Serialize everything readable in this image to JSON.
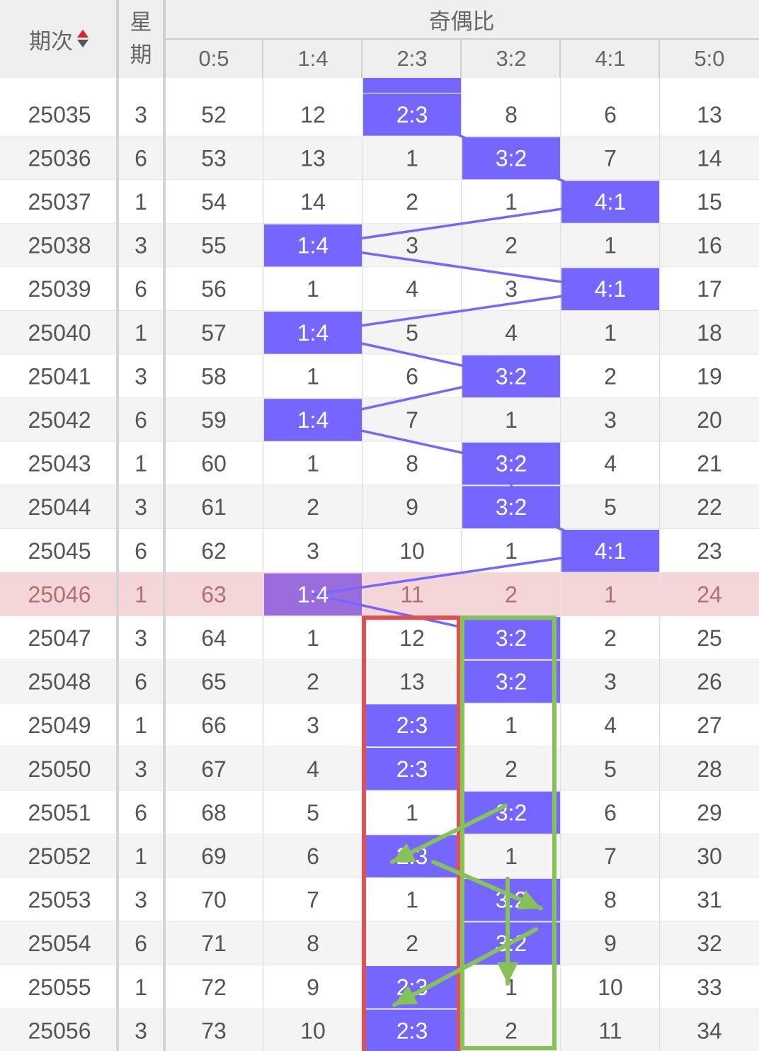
{
  "header": {
    "period_label": "期次",
    "weekday_label_line1": "星",
    "weekday_label_line2": "期",
    "group_label": "奇偶比",
    "columns": [
      "0:5",
      "1:4",
      "2:3",
      "3:2",
      "4:1",
      "5:0"
    ]
  },
  "colors": {
    "hit_cell": "#7466ff",
    "highlight_row": "#f5d6d8",
    "highlight_hit_cell": "#9b6cdb",
    "connector_line": "#7466ff",
    "red_box": "#e05050",
    "green_box": "#86c257"
  },
  "highlight_row_period": "25046",
  "rows": [
    {
      "period": "25035",
      "weekday": "3",
      "cells": [
        "52",
        "12",
        "2:3",
        "8",
        "6",
        "13"
      ],
      "hit": 2
    },
    {
      "period": "25036",
      "weekday": "6",
      "cells": [
        "53",
        "13",
        "1",
        "3:2",
        "7",
        "14"
      ],
      "hit": 3
    },
    {
      "period": "25037",
      "weekday": "1",
      "cells": [
        "54",
        "14",
        "2",
        "1",
        "4:1",
        "15"
      ],
      "hit": 4
    },
    {
      "period": "25038",
      "weekday": "3",
      "cells": [
        "55",
        "1:4",
        "3",
        "2",
        "1",
        "16"
      ],
      "hit": 1
    },
    {
      "period": "25039",
      "weekday": "6",
      "cells": [
        "56",
        "1",
        "4",
        "3",
        "4:1",
        "17"
      ],
      "hit": 4
    },
    {
      "period": "25040",
      "weekday": "1",
      "cells": [
        "57",
        "1:4",
        "5",
        "4",
        "1",
        "18"
      ],
      "hit": 1
    },
    {
      "period": "25041",
      "weekday": "3",
      "cells": [
        "58",
        "1",
        "6",
        "3:2",
        "2",
        "19"
      ],
      "hit": 3
    },
    {
      "period": "25042",
      "weekday": "6",
      "cells": [
        "59",
        "1:4",
        "7",
        "1",
        "3",
        "20"
      ],
      "hit": 1
    },
    {
      "period": "25043",
      "weekday": "1",
      "cells": [
        "60",
        "1",
        "8",
        "3:2",
        "4",
        "21"
      ],
      "hit": 3
    },
    {
      "period": "25044",
      "weekday": "3",
      "cells": [
        "61",
        "2",
        "9",
        "3:2",
        "5",
        "22"
      ],
      "hit": 3
    },
    {
      "period": "25045",
      "weekday": "6",
      "cells": [
        "62",
        "3",
        "10",
        "1",
        "4:1",
        "23"
      ],
      "hit": 4
    },
    {
      "period": "25046",
      "weekday": "1",
      "cells": [
        "63",
        "1:4",
        "11",
        "2",
        "1",
        "24"
      ],
      "hit": 1
    },
    {
      "period": "25047",
      "weekday": "3",
      "cells": [
        "64",
        "1",
        "12",
        "3:2",
        "2",
        "25"
      ],
      "hit": 3
    },
    {
      "period": "25048",
      "weekday": "6",
      "cells": [
        "65",
        "2",
        "13",
        "3:2",
        "3",
        "26"
      ],
      "hit": 3
    },
    {
      "period": "25049",
      "weekday": "1",
      "cells": [
        "66",
        "3",
        "2:3",
        "1",
        "4",
        "27"
      ],
      "hit": 2
    },
    {
      "period": "25050",
      "weekday": "3",
      "cells": [
        "67",
        "4",
        "2:3",
        "2",
        "5",
        "28"
      ],
      "hit": 2
    },
    {
      "period": "25051",
      "weekday": "6",
      "cells": [
        "68",
        "5",
        "1",
        "3:2",
        "6",
        "29"
      ],
      "hit": 3
    },
    {
      "period": "25052",
      "weekday": "1",
      "cells": [
        "69",
        "6",
        "2:3",
        "1",
        "7",
        "30"
      ],
      "hit": 2
    },
    {
      "period": "25053",
      "weekday": "3",
      "cells": [
        "70",
        "7",
        "1",
        "3:2",
        "8",
        "31"
      ],
      "hit": 3
    },
    {
      "period": "25054",
      "weekday": "6",
      "cells": [
        "71",
        "8",
        "2",
        "3:2",
        "9",
        "32"
      ],
      "hit": 3
    },
    {
      "period": "25055",
      "weekday": "1",
      "cells": [
        "72",
        "9",
        "2:3",
        "1",
        "10",
        "33"
      ],
      "hit": 2
    },
    {
      "period": "25056",
      "weekday": "3",
      "cells": [
        "73",
        "10",
        "2:3",
        "2",
        "11",
        "34"
      ],
      "hit": 2
    }
  ]
}
